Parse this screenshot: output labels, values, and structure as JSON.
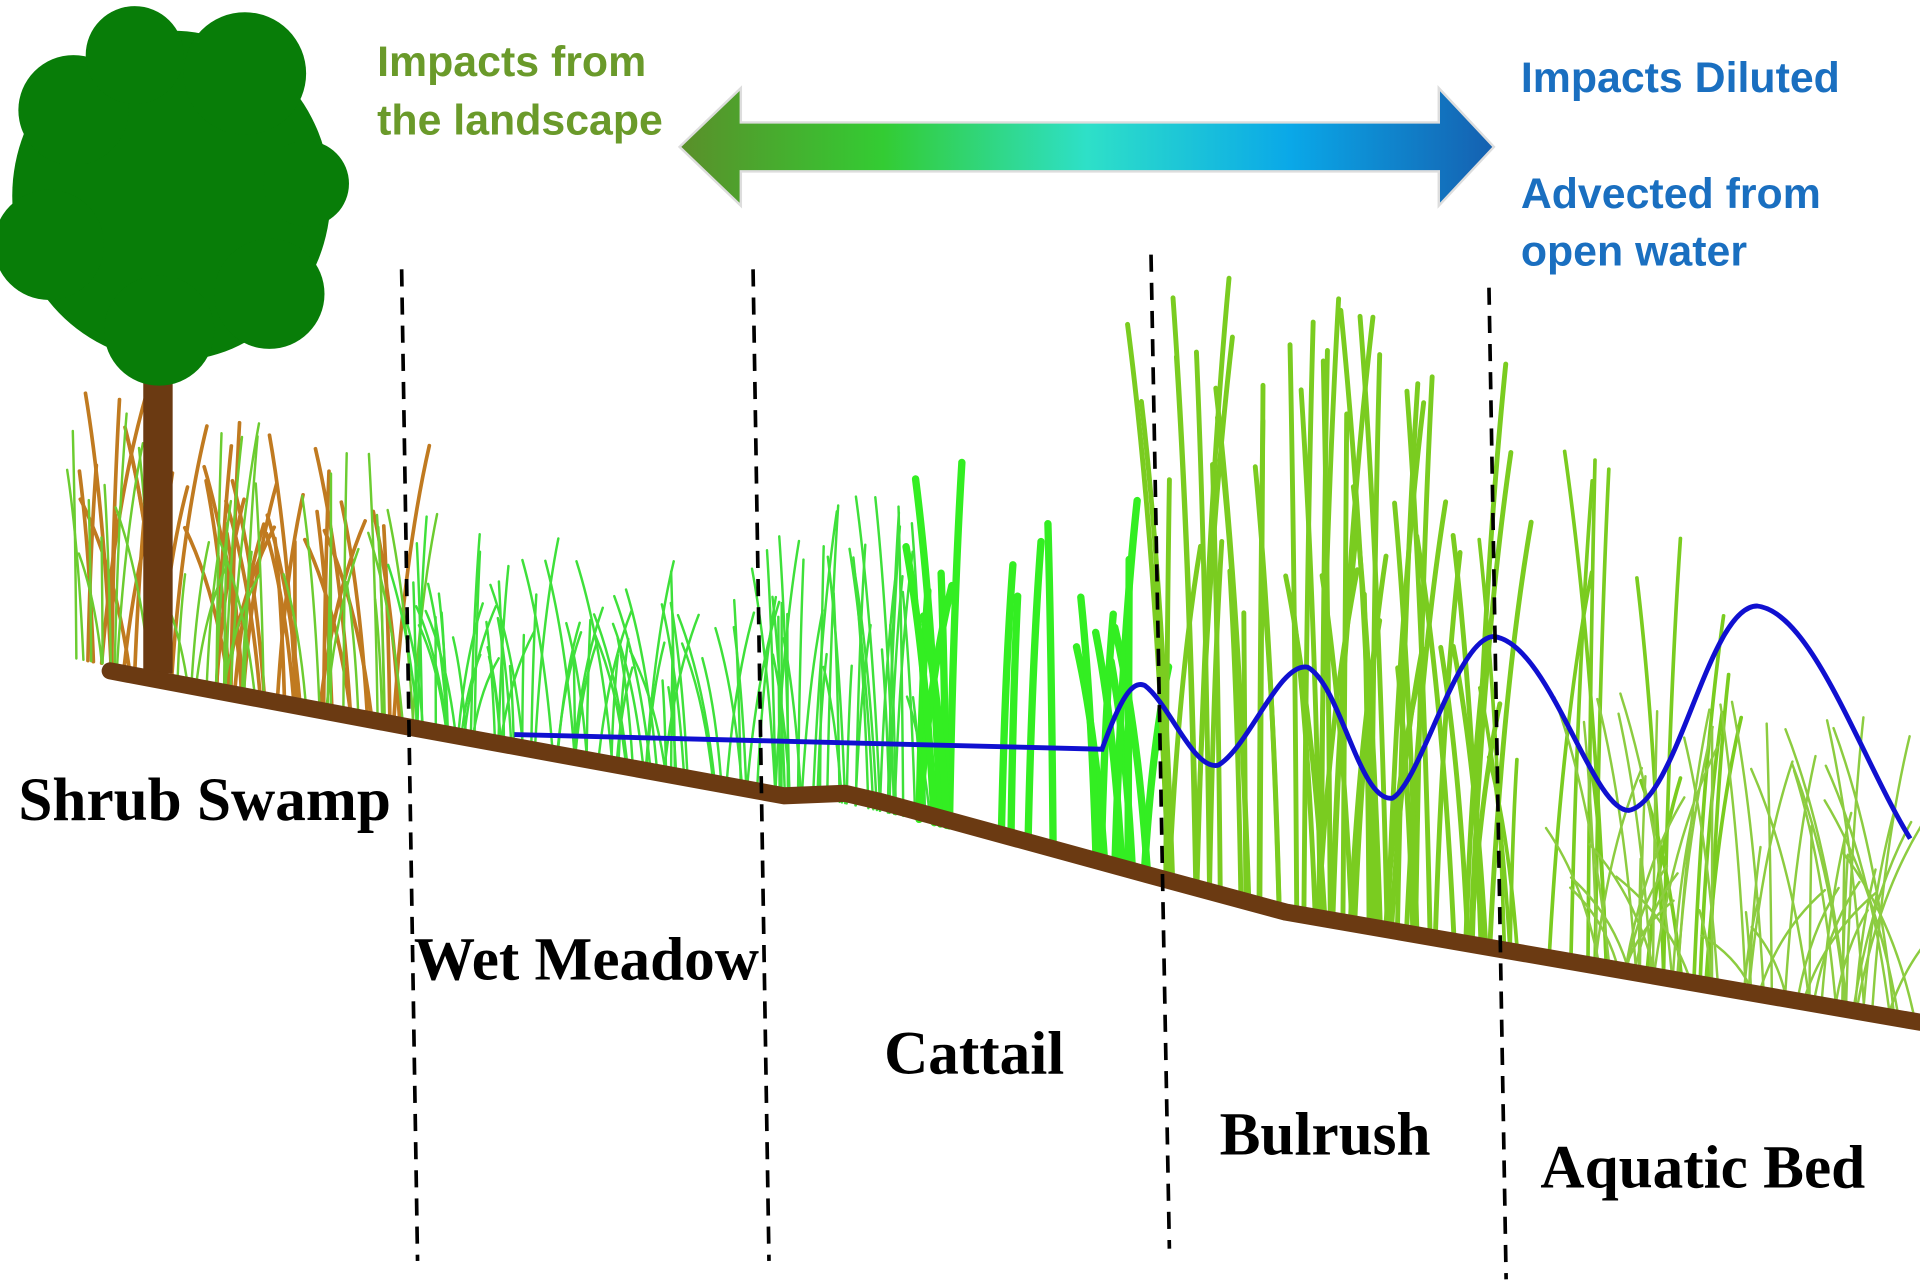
{
  "arrow": {
    "left_text": [
      "Impacts from",
      "the landscape"
    ],
    "right_text": [
      "Impacts Diluted",
      "Advected from",
      "open water"
    ]
  },
  "zones": [
    "Shrub Swamp",
    "Wet Meadow",
    "Cattail",
    "Bulrush",
    "Aquatic Bed"
  ]
}
